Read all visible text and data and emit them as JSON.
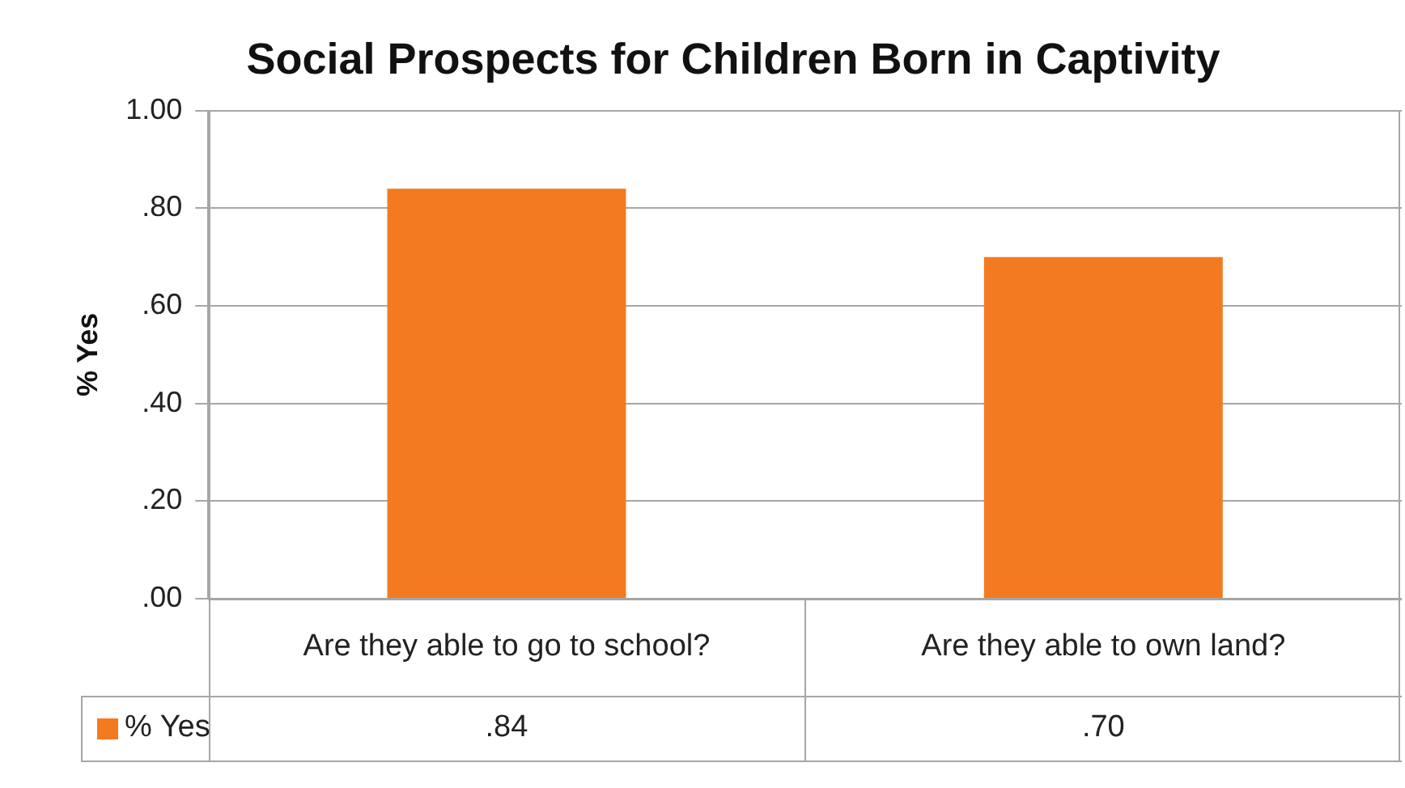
{
  "chart_data": {
    "type": "bar",
    "title": "Social Prospects for Children Born in Captivity",
    "ylabel": "% Yes",
    "categories": [
      "Are they able to go to school?",
      "Are they able to own land?"
    ],
    "series": [
      {
        "name": "% Yes",
        "color": "#f37a21",
        "values": [
          0.84,
          0.7
        ],
        "value_labels": [
          ".84",
          ".70"
        ]
      }
    ],
    "ylim": [
      0,
      1
    ],
    "yticks": [
      {
        "value": 0,
        "label": ".00"
      },
      {
        "value": 0.2,
        "label": ".20"
      },
      {
        "value": 0.4,
        "label": ".40"
      },
      {
        "value": 0.6,
        "label": ".60"
      },
      {
        "value": 0.8,
        "label": ".80"
      },
      {
        "value": 1,
        "label": "1.00"
      }
    ],
    "grid": "y",
    "legend": "bottom left"
  }
}
